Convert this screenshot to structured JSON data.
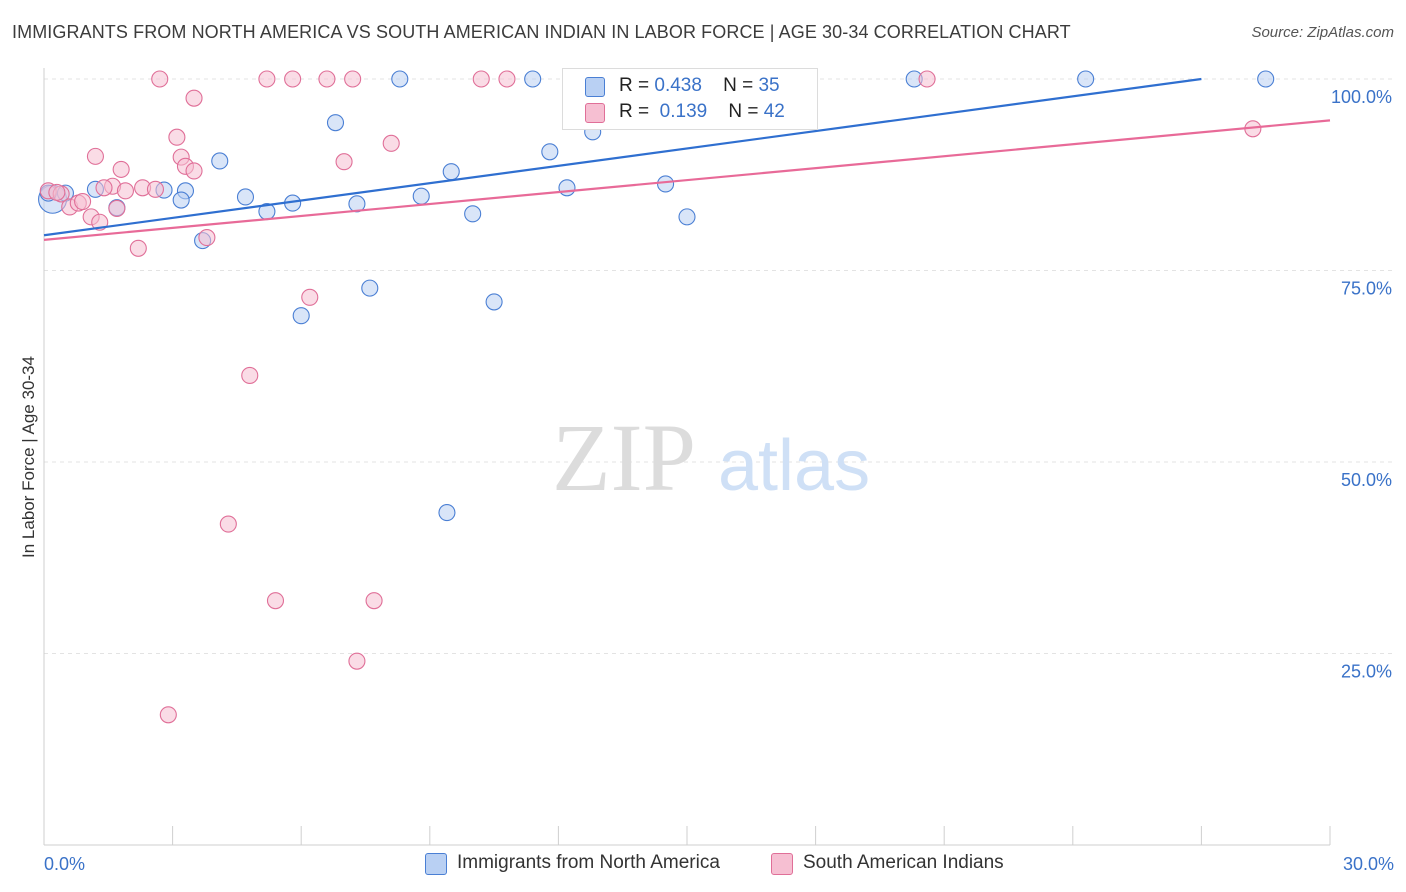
{
  "title": "IMMIGRANTS FROM NORTH AMERICA VS SOUTH AMERICAN INDIAN IN LABOR FORCE | AGE 30-34 CORRELATION CHART",
  "source": "Source: ZipAtlas.com",
  "watermark": {
    "part1": "ZIP",
    "part2": "atlas"
  },
  "colors": {
    "blue": "#4a7fd4",
    "blue_fill": "#b9d0f3",
    "blue_line": "#2f6fd0",
    "pink": "#e06f98",
    "pink_fill": "#f6bfd2",
    "pink_line": "#e86a98",
    "tick_label": "#3a72c8",
    "grid": "#e3e3e3"
  },
  "legend": {
    "rows": [
      {
        "r_label": "R =",
        "r_value": "0.438",
        "n_label": "N =",
        "n_value": "35"
      },
      {
        "r_label": "R =",
        "r_value": "0.139",
        "n_label": "N =",
        "n_value": "42"
      }
    ]
  },
  "bottom_legend": {
    "series1": "Immigrants from North America",
    "series2": "South American Indians"
  },
  "chart_data": {
    "type": "scatter",
    "ylabel": "In Labor Force | Age 30-34",
    "xlabel": "",
    "xlim": [
      0,
      30
    ],
    "ylim": [
      0,
      100
    ],
    "x_tick_labels": [
      "0.0%",
      "30.0%"
    ],
    "y_ticks": [
      25,
      50,
      75,
      100
    ],
    "y_tick_labels": [
      "25.0%",
      "50.0%",
      "75.0%",
      "100.0%"
    ],
    "grid": true,
    "series": [
      {
        "name": "Immigrants from North America",
        "color": "blue",
        "trend": {
          "x": [
            0,
            27.0
          ],
          "y": [
            79.6,
            100.0
          ]
        },
        "points": [
          [
            0.2,
            84.3
          ],
          [
            0.5,
            85.1
          ],
          [
            1.2,
            85.6
          ],
          [
            1.7,
            83.2
          ],
          [
            2.8,
            85.5
          ],
          [
            3.3,
            85.4
          ],
          [
            3.2,
            84.2
          ],
          [
            4.1,
            89.3
          ],
          [
            3.7,
            78.9
          ],
          [
            4.7,
            84.6
          ],
          [
            5.2,
            82.7
          ],
          [
            5.8,
            83.8
          ],
          [
            6.0,
            69.1
          ],
          [
            6.8,
            94.3
          ],
          [
            7.3,
            83.7
          ],
          [
            7.6,
            72.7
          ],
          [
            8.3,
            100.0
          ],
          [
            8.8,
            84.7
          ],
          [
            9.5,
            87.9
          ],
          [
            9.4,
            43.4
          ],
          [
            10.0,
            82.4
          ],
          [
            10.5,
            70.9
          ],
          [
            11.4,
            100.0
          ],
          [
            11.8,
            90.5
          ],
          [
            12.2,
            85.8
          ],
          [
            12.8,
            93.1
          ],
          [
            13.0,
            100.0
          ],
          [
            14.5,
            86.3
          ],
          [
            15.0,
            82.0
          ],
          [
            15.4,
            100.0
          ],
          [
            16.2,
            100.0
          ],
          [
            20.3,
            100.0
          ],
          [
            24.3,
            100.0
          ],
          [
            28.5,
            100.0
          ],
          [
            0.1,
            85.1
          ]
        ]
      },
      {
        "name": "South American Indians",
        "color": "pink",
        "trend": {
          "x": [
            0,
            30.0
          ],
          "y": [
            79.0,
            94.6
          ]
        },
        "points": [
          [
            0.1,
            85.4
          ],
          [
            0.4,
            85.0
          ],
          [
            0.6,
            83.3
          ],
          [
            0.8,
            83.8
          ],
          [
            1.1,
            82.0
          ],
          [
            1.3,
            81.3
          ],
          [
            1.2,
            89.9
          ],
          [
            1.6,
            86.0
          ],
          [
            1.7,
            83.1
          ],
          [
            1.8,
            88.2
          ],
          [
            1.9,
            85.4
          ],
          [
            2.2,
            77.9
          ],
          [
            2.3,
            85.8
          ],
          [
            2.6,
            85.6
          ],
          [
            2.7,
            100.0
          ],
          [
            2.9,
            17.0
          ],
          [
            3.1,
            92.4
          ],
          [
            3.2,
            89.8
          ],
          [
            3.3,
            88.6
          ],
          [
            3.5,
            97.5
          ],
          [
            3.5,
            88.0
          ],
          [
            3.8,
            79.3
          ],
          [
            4.3,
            41.9
          ],
          [
            4.8,
            61.3
          ],
          [
            5.2,
            100.0
          ],
          [
            5.4,
            31.9
          ],
          [
            5.8,
            100.0
          ],
          [
            6.2,
            71.5
          ],
          [
            6.6,
            100.0
          ],
          [
            7.0,
            89.2
          ],
          [
            7.2,
            100.0
          ],
          [
            7.3,
            24.0
          ],
          [
            7.7,
            31.9
          ],
          [
            8.1,
            91.6
          ],
          [
            10.2,
            100.0
          ],
          [
            10.8,
            100.0
          ],
          [
            15.4,
            100.0
          ],
          [
            20.6,
            100.0
          ],
          [
            28.2,
            93.5
          ],
          [
            0.3,
            85.2
          ],
          [
            0.9,
            84.0
          ],
          [
            1.4,
            85.8
          ]
        ]
      }
    ]
  }
}
